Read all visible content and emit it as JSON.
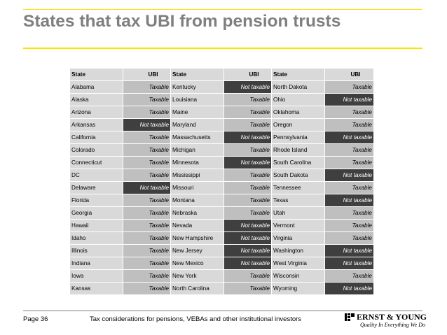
{
  "title": "States that tax UBI from pension trusts",
  "table": {
    "headers": [
      "State",
      "UBI",
      "State",
      "UBI",
      "State",
      "UBI"
    ],
    "rows": [
      [
        {
          "state": "Alabama",
          "ubi": "Taxable"
        },
        {
          "state": "Kentucky",
          "ubi": "Not taxable"
        },
        {
          "state": "North Dakota",
          "ubi": "Taxable"
        }
      ],
      [
        {
          "state": "Alaska",
          "ubi": "Taxable"
        },
        {
          "state": "Louisiana",
          "ubi": "Taxable"
        },
        {
          "state": "Ohio",
          "ubi": "Not taxable"
        }
      ],
      [
        {
          "state": "Arizona",
          "ubi": "Taxable"
        },
        {
          "state": "Maine",
          "ubi": "Taxable"
        },
        {
          "state": "Oklahoma",
          "ubi": "Taxable"
        }
      ],
      [
        {
          "state": "Arkansas",
          "ubi": "Not taxable"
        },
        {
          "state": "Maryland",
          "ubi": "Taxable"
        },
        {
          "state": "Oregon",
          "ubi": "Taxable"
        }
      ],
      [
        {
          "state": "California",
          "ubi": "Taxable"
        },
        {
          "state": "Massachusetts",
          "ubi": "Not taxable"
        },
        {
          "state": "Pennsylvania",
          "ubi": "Not taxable"
        }
      ],
      [
        {
          "state": "Colorado",
          "ubi": "Taxable"
        },
        {
          "state": "Michigan",
          "ubi": "Taxable"
        },
        {
          "state": "Rhode Island",
          "ubi": "Taxable"
        }
      ],
      [
        {
          "state": "Connecticut",
          "ubi": "Taxable"
        },
        {
          "state": "Minnesota",
          "ubi": "Not taxable"
        },
        {
          "state": "South Carolina",
          "ubi": "Taxable"
        }
      ],
      [
        {
          "state": "DC",
          "ubi": "Taxable"
        },
        {
          "state": "Mississippi",
          "ubi": "Taxable"
        },
        {
          "state": "South Dakota",
          "ubi": "Not taxable"
        }
      ],
      [
        {
          "state": "Delaware",
          "ubi": "Not taxable"
        },
        {
          "state": "Missouri",
          "ubi": "Taxable"
        },
        {
          "state": "Tennessee",
          "ubi": "Taxable"
        }
      ],
      [
        {
          "state": "Florida",
          "ubi": "Taxable"
        },
        {
          "state": "Montana",
          "ubi": "Taxable"
        },
        {
          "state": "Texas",
          "ubi": "Not taxable"
        }
      ],
      [
        {
          "state": "Georgia",
          "ubi": "Taxable"
        },
        {
          "state": "Nebraska",
          "ubi": "Taxable"
        },
        {
          "state": "Utah",
          "ubi": "Taxable"
        }
      ],
      [
        {
          "state": "Hawaii",
          "ubi": "Taxable"
        },
        {
          "state": "Nevada",
          "ubi": "Not taxable"
        },
        {
          "state": "Vermont",
          "ubi": "Taxable"
        }
      ],
      [
        {
          "state": "Idaho",
          "ubi": "Taxable"
        },
        {
          "state": "New Hampshire",
          "ubi": "Not taxable"
        },
        {
          "state": "Virginia",
          "ubi": "Taxable"
        }
      ],
      [
        {
          "state": "Illinois",
          "ubi": "Taxable"
        },
        {
          "state": "New Jersey",
          "ubi": "Not taxable"
        },
        {
          "state": "Washington",
          "ubi": "Not taxable"
        }
      ],
      [
        {
          "state": "Indiana",
          "ubi": "Taxable"
        },
        {
          "state": "New Mexico",
          "ubi": "Not taxable"
        },
        {
          "state": "West Virginia",
          "ubi": "Not taxable"
        }
      ],
      [
        {
          "state": "Iowa",
          "ubi": "Taxable"
        },
        {
          "state": "New York",
          "ubi": "Taxable"
        },
        {
          "state": "Wisconsin",
          "ubi": "Taxable"
        }
      ],
      [
        {
          "state": "Kansas",
          "ubi": "Taxable"
        },
        {
          "state": "North Carolina",
          "ubi": "Taxable"
        },
        {
          "state": "Wyoming",
          "ubi": "Not taxable"
        }
      ]
    ]
  },
  "footer": {
    "page": "Page 36",
    "text": "Tax considerations for pensions, VEBAs and other institutional investors",
    "logo_name": "ERNST & YOUNG",
    "logo_tagline": "Quality In Everything We Do"
  },
  "colors": {
    "accent_yellow": "#ffe100",
    "title_gray": "#7f7f7f",
    "taxable_cell": "#bfbfbf",
    "not_taxable_cell": "#3f3f3f"
  }
}
